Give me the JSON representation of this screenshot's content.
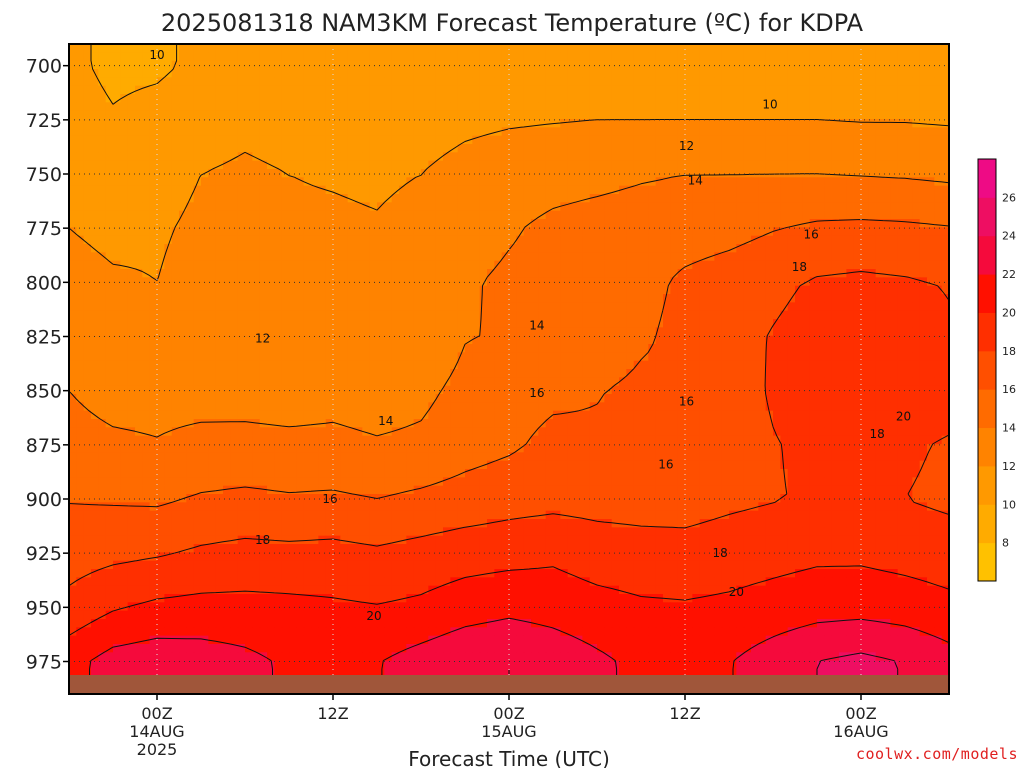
{
  "chart_data": {
    "type": "heatmap",
    "title": "2025081318 NAM3KM Forecast Temperature (ºC) for KDPA",
    "xlabel": "Forecast Time (UTC)",
    "ylabel": "",
    "pressure_ticks": [
      "700",
      "725",
      "750",
      "775",
      "800",
      "825",
      "850",
      "875",
      "900",
      "925",
      "950",
      "975"
    ],
    "time_ticks": [
      {
        "hour": 6,
        "lines": [
          "00Z",
          "14AUG",
          "2025"
        ]
      },
      {
        "hour": 18,
        "lines": [
          "12Z"
        ]
      },
      {
        "hour": 30,
        "lines": [
          "00Z",
          "15AUG"
        ]
      },
      {
        "hour": 42,
        "lines": [
          "12Z"
        ]
      },
      {
        "hour": 54,
        "lines": [
          "00Z",
          "16AUG"
        ]
      }
    ],
    "xlim_hours": [
      0,
      60
    ],
    "ylim_hpa": [
      690,
      990
    ],
    "grid": true,
    "colorbar": {
      "levels": [
        6,
        8,
        10,
        12,
        14,
        16,
        18,
        20,
        22,
        24,
        26,
        28
      ],
      "tick_labels": [
        "8",
        "10",
        "12",
        "14",
        "16",
        "18",
        "20",
        "22",
        "24",
        "26"
      ],
      "colors": [
        "#ffc100",
        "#ffab00",
        "#ff9900",
        "#ff8300",
        "#ff6b00",
        "#ff4f00",
        "#ff2f00",
        "#ff1000",
        "#f50a3c",
        "#ee0e62",
        "#ee0b85"
      ]
    },
    "contour_labels": [
      {
        "text": "10",
        "hour": 6.0,
        "hpa": 695
      },
      {
        "text": "10",
        "hour": 47.8,
        "hpa": 718
      },
      {
        "text": "12",
        "hour": 42.1,
        "hpa": 737
      },
      {
        "text": "12",
        "hour": 13.2,
        "hpa": 826
      },
      {
        "text": "14",
        "hour": 42.7,
        "hpa": 753
      },
      {
        "text": "14",
        "hour": 31.9,
        "hpa": 820
      },
      {
        "text": "14",
        "hour": 21.6,
        "hpa": 864
      },
      {
        "text": "16",
        "hour": 50.6,
        "hpa": 778
      },
      {
        "text": "16",
        "hour": 31.9,
        "hpa": 851
      },
      {
        "text": "16",
        "hour": 42.1,
        "hpa": 855
      },
      {
        "text": "16",
        "hour": 17.8,
        "hpa": 900
      },
      {
        "text": "16",
        "hour": 40.7,
        "hpa": 884
      },
      {
        "text": "18",
        "hour": 49.8,
        "hpa": 793
      },
      {
        "text": "18",
        "hour": 13.2,
        "hpa": 919
      },
      {
        "text": "18",
        "hour": 44.4,
        "hpa": 925
      },
      {
        "text": "18",
        "hour": 55.1,
        "hpa": 870
      },
      {
        "text": "20",
        "hour": 56.9,
        "hpa": 862
      },
      {
        "text": "20",
        "hour": 45.5,
        "hpa": 943
      },
      {
        "text": "20",
        "hour": 20.8,
        "hpa": 954
      }
    ],
    "temperature_field": {
      "description_hours": [
        0,
        3,
        6,
        9,
        12,
        15,
        18,
        21,
        24,
        27,
        30,
        33,
        36,
        39,
        42,
        45,
        48,
        51,
        54,
        57,
        60
      ],
      "description_hpa": [
        700,
        725,
        750,
        775,
        800,
        825,
        850,
        875,
        900,
        925,
        950,
        975
      ],
      "celsius": [
        [
          10.5,
          9.5,
          9.6,
          10.5,
          10.8,
          10.6,
          10.7,
          10.3,
          10.0,
          10.4,
          10.6,
          10.7,
          10.8,
          10.8,
          10.9,
          10.9,
          10.9,
          10.9,
          10.8,
          10.8,
          10.8
        ],
        [
          11.0,
          10.2,
          10.8,
          11.4,
          11.7,
          11.5,
          11.2,
          11.1,
          11.2,
          11.6,
          11.8,
          11.9,
          12.0,
          12.0,
          12.0,
          12.0,
          12.0,
          12.0,
          11.9,
          11.9,
          11.8
        ],
        [
          11.5,
          10.9,
          11.4,
          12.0,
          12.2,
          12.0,
          11.9,
          11.8,
          12.0,
          12.6,
          13.0,
          13.3,
          13.5,
          13.8,
          14.0,
          14.0,
          14.0,
          14.0,
          13.9,
          13.8,
          13.6
        ],
        [
          12.0,
          11.6,
          11.8,
          12.3,
          12.4,
          12.2,
          12.2,
          12.1,
          12.4,
          13.2,
          13.8,
          14.4,
          14.7,
          14.9,
          15.0,
          15.3,
          15.9,
          16.3,
          16.4,
          16.3,
          16.1
        ],
        [
          12.6,
          12.2,
          12.0,
          12.6,
          12.5,
          12.3,
          12.4,
          12.2,
          12.6,
          13.8,
          14.3,
          14.6,
          14.9,
          15.3,
          16.4,
          17.0,
          17.6,
          18.2,
          18.4,
          18.2,
          17.9
        ],
        [
          13.2,
          12.9,
          12.5,
          12.6,
          12.3,
          12.1,
          12.3,
          12.0,
          12.3,
          13.9,
          14.2,
          14.5,
          14.7,
          15.7,
          16.6,
          17.4,
          18.1,
          18.7,
          19.0,
          18.7,
          18.2
        ],
        [
          14.0,
          13.4,
          13.4,
          13.3,
          13.2,
          13.0,
          13.3,
          13.0,
          13.5,
          14.6,
          15.2,
          15.6,
          15.9,
          16.4,
          16.2,
          17.1,
          18.2,
          19.2,
          19.5,
          19.1,
          18.9
        ],
        [
          14.6,
          14.3,
          14.1,
          14.5,
          14.6,
          14.5,
          14.5,
          14.2,
          14.4,
          15.2,
          15.7,
          16.5,
          16.3,
          16.3,
          16.3,
          17.1,
          17.9,
          18.4,
          18.6,
          18.3,
          17.8
        ],
        [
          15.9,
          15.8,
          15.7,
          16.2,
          16.4,
          16.2,
          16.3,
          16.0,
          16.4,
          16.8,
          17.2,
          17.4,
          17.3,
          17.2,
          17.2,
          17.6,
          17.9,
          18.2,
          18.3,
          18.0,
          17.6
        ],
        [
          17.1,
          17.5,
          17.8,
          18.3,
          18.6,
          18.5,
          18.6,
          18.3,
          18.7,
          19.1,
          19.3,
          19.6,
          19.0,
          18.8,
          18.7,
          19.0,
          19.3,
          19.6,
          19.6,
          19.3,
          19.0
        ],
        [
          18.6,
          19.8,
          20.4,
          20.6,
          20.6,
          20.5,
          20.3,
          20.1,
          20.4,
          21.1,
          21.5,
          21.2,
          20.7,
          20.3,
          20.2,
          20.4,
          20.8,
          21.2,
          21.3,
          21.0,
          20.5
        ],
        [
          21.3,
          22.8,
          23.2,
          23.0,
          22.5,
          21.7,
          21.7,
          21.9,
          22.8,
          23.6,
          24.0,
          23.3,
          22.4,
          21.5,
          21.3,
          21.9,
          23.0,
          24.0,
          24.5,
          23.9,
          22.8
        ]
      ]
    },
    "footer": {
      "credit": "coolwx.com/models"
    }
  }
}
